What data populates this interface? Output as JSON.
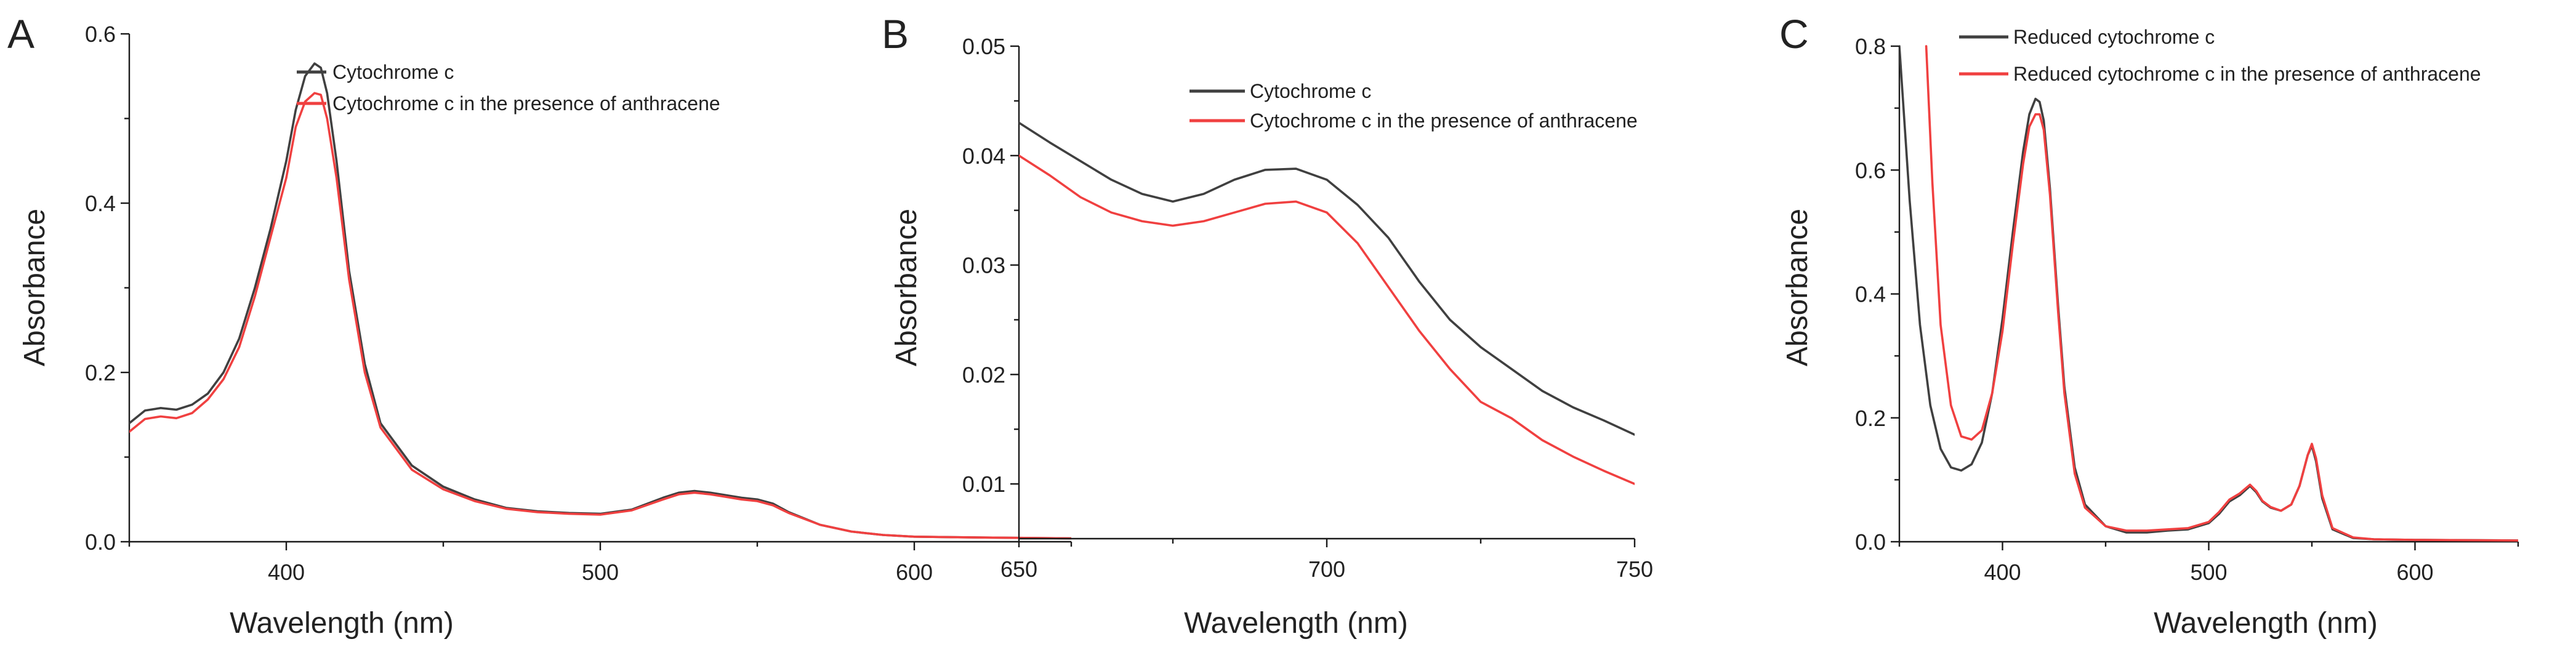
{
  "chart_data": [
    {
      "panel": "A",
      "type": "line",
      "title": "",
      "xlabel": "Wavelength (nm)",
      "ylabel": "Absorbance",
      "xlim": [
        350,
        650
      ],
      "ylim": [
        0,
        0.6
      ],
      "xticks": [
        400,
        500,
        600
      ],
      "xtick_labels": [
        "400",
        "500",
        "600"
      ],
      "yticks": [
        0,
        0.2,
        0.4,
        0.6
      ],
      "ytick_labels": [
        "0.0",
        "0.2",
        "0.4",
        "0.6"
      ],
      "legend_position": "top-right",
      "series": [
        {
          "name": "Cytochrome c",
          "color": "#404040",
          "x": [
            350,
            355,
            360,
            365,
            370,
            375,
            380,
            385,
            390,
            395,
            400,
            403,
            406,
            409,
            411,
            413,
            416,
            420,
            425,
            430,
            440,
            450,
            460,
            470,
            480,
            490,
            500,
            510,
            520,
            525,
            530,
            535,
            540,
            545,
            550,
            555,
            560,
            570,
            580,
            590,
            600,
            620,
            650
          ],
          "y": [
            0.14,
            0.155,
            0.158,
            0.156,
            0.162,
            0.175,
            0.2,
            0.24,
            0.3,
            0.37,
            0.45,
            0.51,
            0.55,
            0.565,
            0.56,
            0.53,
            0.45,
            0.32,
            0.21,
            0.14,
            0.09,
            0.065,
            0.05,
            0.04,
            0.036,
            0.034,
            0.033,
            0.038,
            0.052,
            0.058,
            0.06,
            0.058,
            0.055,
            0.052,
            0.05,
            0.045,
            0.035,
            0.02,
            0.012,
            0.008,
            0.006,
            0.005,
            0.004
          ]
        },
        {
          "name": "Cytochrome c in the presence of anthracene",
          "color": "#f04040",
          "x": [
            350,
            355,
            360,
            365,
            370,
            375,
            380,
            385,
            390,
            395,
            400,
            403,
            406,
            409,
            411,
            413,
            416,
            420,
            425,
            430,
            440,
            450,
            460,
            470,
            480,
            490,
            500,
            510,
            520,
            525,
            530,
            535,
            540,
            545,
            550,
            555,
            560,
            570,
            580,
            590,
            600,
            620,
            650
          ],
          "y": [
            0.13,
            0.145,
            0.148,
            0.146,
            0.152,
            0.168,
            0.192,
            0.23,
            0.29,
            0.36,
            0.43,
            0.49,
            0.52,
            0.53,
            0.528,
            0.5,
            0.43,
            0.31,
            0.2,
            0.135,
            0.085,
            0.062,
            0.048,
            0.039,
            0.035,
            0.033,
            0.032,
            0.037,
            0.05,
            0.056,
            0.058,
            0.056,
            0.053,
            0.05,
            0.048,
            0.043,
            0.034,
            0.02,
            0.012,
            0.008,
            0.006,
            0.005,
            0.004
          ]
        }
      ]
    },
    {
      "panel": "B",
      "type": "line",
      "title": "",
      "xlabel": "Wavelength (nm)",
      "ylabel": "Absorbance",
      "xlim": [
        650,
        750
      ],
      "ylim": [
        0.005,
        0.05
      ],
      "xticks": [
        650,
        700,
        750
      ],
      "xtick_labels": [
        "650",
        "700",
        "750"
      ],
      "yticks": [
        0.01,
        0.02,
        0.03,
        0.04,
        0.05
      ],
      "ytick_labels": [
        "0.01",
        "0.02",
        "0.03",
        "0.04",
        "0.05"
      ],
      "legend_position": "top-right",
      "series": [
        {
          "name": "Cytochrome c",
          "color": "#404040",
          "x": [
            650,
            655,
            660,
            665,
            670,
            675,
            680,
            685,
            690,
            695,
            700,
            705,
            710,
            715,
            720,
            725,
            730,
            735,
            740,
            745,
            750
          ],
          "y": [
            0.043,
            0.0412,
            0.0395,
            0.0378,
            0.0365,
            0.0358,
            0.0365,
            0.0378,
            0.0387,
            0.0388,
            0.0378,
            0.0355,
            0.0325,
            0.0285,
            0.025,
            0.0225,
            0.0205,
            0.0185,
            0.017,
            0.0158,
            0.0145
          ]
        },
        {
          "name": "Cytochrome c in the presence of anthracene",
          "color": "#f04040",
          "x": [
            650,
            655,
            660,
            665,
            670,
            675,
            680,
            685,
            690,
            695,
            700,
            705,
            710,
            715,
            720,
            725,
            730,
            735,
            740,
            745,
            750
          ],
          "y": [
            0.04,
            0.0382,
            0.0362,
            0.0348,
            0.034,
            0.0336,
            0.034,
            0.0348,
            0.0356,
            0.0358,
            0.0348,
            0.032,
            0.028,
            0.024,
            0.0205,
            0.0175,
            0.016,
            0.014,
            0.0125,
            0.0112,
            0.01
          ]
        }
      ]
    },
    {
      "panel": "C",
      "type": "line",
      "title": "",
      "xlabel": "Wavelength (nm)",
      "ylabel": "Absorbance",
      "xlim": [
        350,
        650
      ],
      "ylim": [
        0,
        0.8
      ],
      "xticks": [
        400,
        500,
        600
      ],
      "xtick_labels": [
        "400",
        "500",
        "600"
      ],
      "yticks": [
        0,
        0.2,
        0.4,
        0.6,
        0.8
      ],
      "ytick_labels": [
        "0.0",
        "0.2",
        "0.4",
        "0.6",
        "0.8"
      ],
      "legend_position": "top-right",
      "series": [
        {
          "name": "Reduced cytochrome c",
          "color": "#404040",
          "x": [
            350,
            355,
            360,
            365,
            370,
            375,
            380,
            385,
            390,
            395,
            400,
            405,
            410,
            413,
            416,
            418,
            420,
            423,
            427,
            430,
            435,
            440,
            450,
            460,
            470,
            480,
            490,
            500,
            505,
            510,
            515,
            520,
            523,
            526,
            530,
            535,
            540,
            544,
            548,
            550,
            552,
            555,
            560,
            570,
            580,
            600,
            650
          ],
          "y": [
            0.8,
            0.55,
            0.35,
            0.22,
            0.15,
            0.12,
            0.115,
            0.125,
            0.16,
            0.24,
            0.36,
            0.5,
            0.63,
            0.69,
            0.715,
            0.71,
            0.68,
            0.57,
            0.38,
            0.25,
            0.12,
            0.06,
            0.025,
            0.015,
            0.015,
            0.018,
            0.02,
            0.03,
            0.045,
            0.065,
            0.075,
            0.09,
            0.08,
            0.065,
            0.055,
            0.05,
            0.06,
            0.09,
            0.14,
            0.155,
            0.13,
            0.07,
            0.02,
            0.006,
            0.004,
            0.003,
            0.002
          ]
        },
        {
          "name": "Reduced cytochrome c in the presence of anthracene",
          "color": "#f04040",
          "x": [
            363,
            366,
            370,
            375,
            380,
            385,
            390,
            395,
            400,
            405,
            410,
            413,
            416,
            418,
            420,
            423,
            427,
            430,
            435,
            440,
            450,
            460,
            470,
            480,
            490,
            500,
            505,
            510,
            515,
            520,
            523,
            526,
            530,
            535,
            540,
            544,
            548,
            550,
            552,
            555,
            560,
            570,
            580,
            600,
            650
          ],
          "y": [
            0.8,
            0.58,
            0.35,
            0.22,
            0.17,
            0.165,
            0.18,
            0.24,
            0.34,
            0.48,
            0.61,
            0.67,
            0.69,
            0.69,
            0.665,
            0.56,
            0.37,
            0.24,
            0.11,
            0.055,
            0.025,
            0.018,
            0.018,
            0.02,
            0.022,
            0.032,
            0.048,
            0.068,
            0.078,
            0.092,
            0.082,
            0.066,
            0.056,
            0.05,
            0.06,
            0.09,
            0.14,
            0.158,
            0.135,
            0.075,
            0.022,
            0.007,
            0.004,
            0.003,
            0.002
          ]
        }
      ]
    }
  ]
}
